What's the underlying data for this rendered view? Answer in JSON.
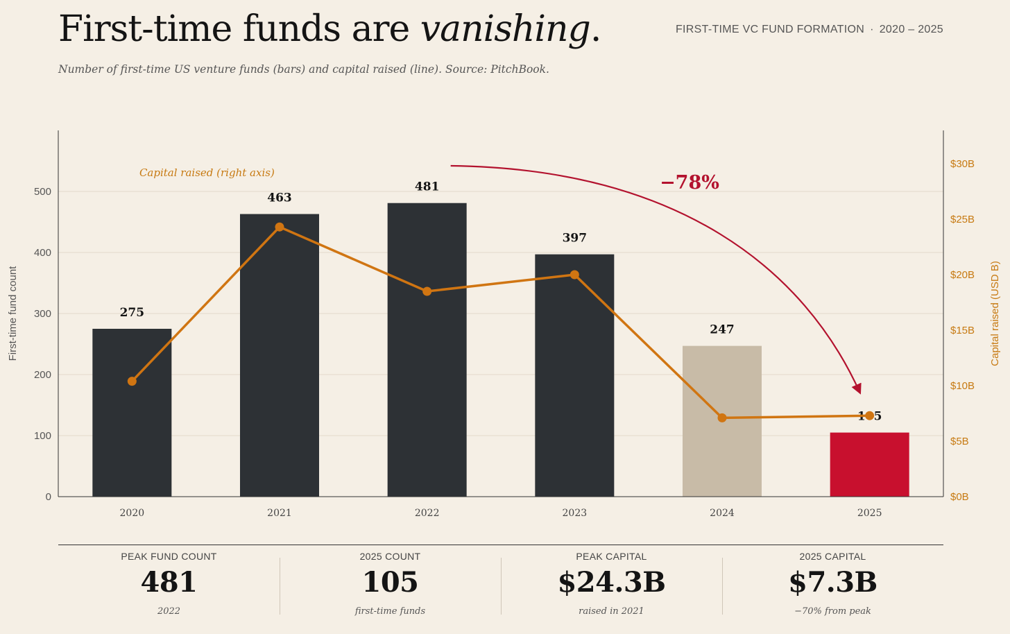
{
  "header": {
    "title_plain": "First-time funds are ",
    "title_emph": "vanishing",
    "title_end": ".",
    "kicker_left": "FIRST-TIME VC FUND FORMATION",
    "kicker_sep": "·",
    "kicker_right": "2020 – 2025",
    "subtitle": "Number of first-time US venture funds (bars) and capital raised (line). Source: PitchBook."
  },
  "colors": {
    "bar": "#2d3135",
    "bar_2024": "#c8bba7",
    "bar_2025": "#c8102e",
    "line": "#d07512",
    "annotation": "#b3122e",
    "axis_right": "#c77a12"
  },
  "chart_data": {
    "type": "bar",
    "categories": [
      "2020",
      "2021",
      "2022",
      "2023",
      "2024",
      "2025"
    ],
    "series": [
      {
        "values": [
          275,
          463,
          481,
          397,
          247,
          105
        ],
        "axis": "left",
        "kind": "bar"
      },
      {
        "name": "Capital raised (right axis)",
        "values": [
          10.4,
          24.3,
          18.5,
          20.0,
          7.1,
          7.3
        ],
        "axis": "right",
        "kind": "line"
      }
    ],
    "ylabel": "First-time fund count",
    "y2label": "Capital raised (USD B)",
    "ylim": [
      0,
      600
    ],
    "y2lim": [
      0,
      33
    ],
    "yticks": [
      "0",
      "100",
      "200",
      "300",
      "400",
      "500"
    ],
    "yticks_values": [
      0,
      100,
      200,
      300,
      400,
      500
    ],
    "y2ticks": [
      "$0B",
      "$5B",
      "$10B",
      "$15B",
      "$20B",
      "$25B",
      "$30B"
    ],
    "y2ticks_values": [
      0,
      5,
      10,
      15,
      20,
      25,
      30
    ],
    "data_labels": [
      "275",
      "463",
      "481",
      "397",
      "247",
      "105"
    ],
    "line_label": "Capital raised (right axis)",
    "annotation": "−78%",
    "grid": "horizontal"
  },
  "stats": [
    {
      "label": "PEAK FUND COUNT",
      "value": "481",
      "note": "2022"
    },
    {
      "label": "2025 COUNT",
      "value": "105",
      "note": "first-time funds"
    },
    {
      "label": "PEAK CAPITAL",
      "value": "$24.3B",
      "note": "raised in 2021"
    },
    {
      "label": "2025 CAPITAL",
      "value": "$7.3B",
      "note": "−70% from peak"
    }
  ]
}
